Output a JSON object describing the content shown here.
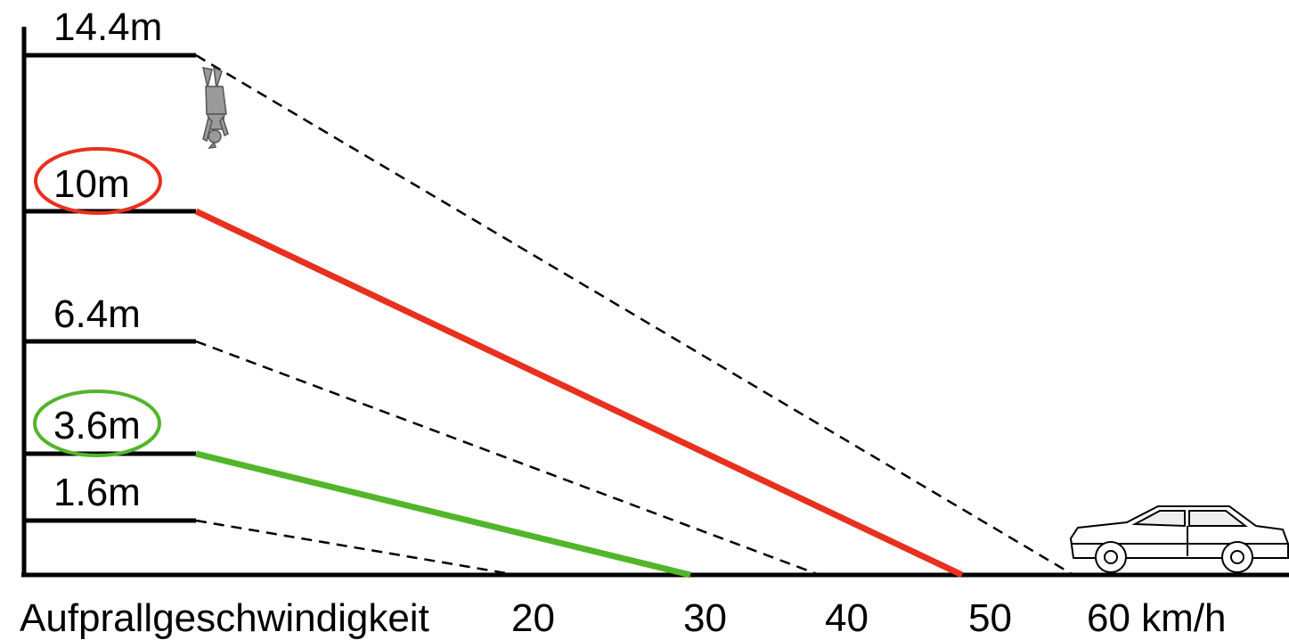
{
  "diagram": {
    "heights": [
      {
        "label": "14.4m",
        "speed_kmh": 60,
        "style": "dashed",
        "highlight": null
      },
      {
        "label": "10m",
        "speed_kmh": 50,
        "style": "solid",
        "highlight": "red"
      },
      {
        "label": "6.4m",
        "speed_kmh": 40,
        "style": "dashed",
        "highlight": null
      },
      {
        "label": "3.6m",
        "speed_kmh": 30,
        "style": "solid",
        "highlight": "green"
      },
      {
        "label": "1.6m",
        "speed_kmh": 20,
        "style": "dashed",
        "highlight": null
      }
    ],
    "x_axis": {
      "title": "Aufprallgeschwindigkeit",
      "ticks": [
        "20",
        "30",
        "40",
        "50",
        "60 km/h"
      ]
    },
    "colors": {
      "red": "#e8301e",
      "green": "#52b52a",
      "line": "#000000",
      "figure": "#9a9a9a"
    },
    "icons": [
      "falling-person-icon",
      "car-icon"
    ]
  }
}
